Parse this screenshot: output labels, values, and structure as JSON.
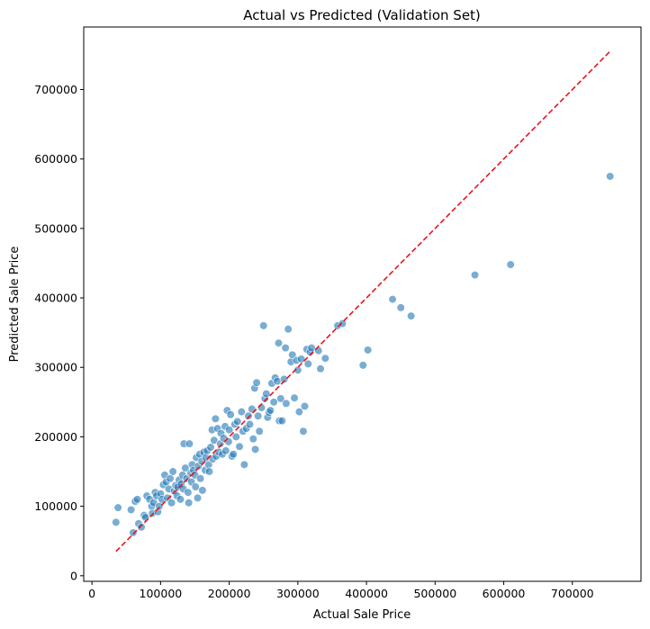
{
  "chart_data": {
    "type": "scatter",
    "title": "Actual vs Predicted (Validation Set)",
    "xlabel": "Actual Sale Price",
    "ylabel": "Predicted Sale Price",
    "xlim": [
      -12000,
      800000
    ],
    "ylim": [
      -8000,
      790000
    ],
    "xticks": [
      0,
      100000,
      200000,
      300000,
      400000,
      500000,
      600000,
      700000
    ],
    "yticks": [
      0,
      100000,
      200000,
      300000,
      400000,
      500000,
      600000,
      700000
    ],
    "xtick_labels": [
      "0",
      "100000",
      "200000",
      "300000",
      "400000",
      "500000",
      "600000",
      "700000"
    ],
    "ytick_labels": [
      "0",
      "100000",
      "200000",
      "300000",
      "400000",
      "500000",
      "600000",
      "700000"
    ],
    "grid": false,
    "point_color": "#1f77b4",
    "point_opacity": 0.6,
    "reference_line": {
      "x": [
        35000,
        755000
      ],
      "y": [
        35000,
        755000
      ],
      "color": "#e8141a",
      "style": "dashed"
    },
    "points": [
      [
        35000,
        77000
      ],
      [
        38000,
        98000
      ],
      [
        57000,
        95000
      ],
      [
        60000,
        62000
      ],
      [
        63000,
        107000
      ],
      [
        66000,
        110000
      ],
      [
        68000,
        75000
      ],
      [
        72000,
        70000
      ],
      [
        76000,
        87000
      ],
      [
        78000,
        84000
      ],
      [
        80000,
        115000
      ],
      [
        84000,
        110000
      ],
      [
        87000,
        100000
      ],
      [
        88000,
        90000
      ],
      [
        90000,
        105000
      ],
      [
        92000,
        120000
      ],
      [
        94000,
        115000
      ],
      [
        96000,
        92000
      ],
      [
        98000,
        100000
      ],
      [
        100000,
        118000
      ],
      [
        102000,
        110000
      ],
      [
        104000,
        131000
      ],
      [
        106000,
        145000
      ],
      [
        108000,
        135000
      ],
      [
        110000,
        112000
      ],
      [
        112000,
        125000
      ],
      [
        114000,
        140000
      ],
      [
        116000,
        105000
      ],
      [
        118000,
        150000
      ],
      [
        120000,
        122000
      ],
      [
        122000,
        130000
      ],
      [
        124000,
        115000
      ],
      [
        125000,
        128000
      ],
      [
        127000,
        138000
      ],
      [
        129000,
        110000
      ],
      [
        130000,
        132000
      ],
      [
        132000,
        145000
      ],
      [
        133000,
        125000
      ],
      [
        134000,
        190000
      ],
      [
        136000,
        155000
      ],
      [
        138000,
        140000
      ],
      [
        140000,
        120000
      ],
      [
        141000,
        105000
      ],
      [
        142000,
        190000
      ],
      [
        144000,
        148000
      ],
      [
        145000,
        135000
      ],
      [
        146000,
        160000
      ],
      [
        148000,
        152000
      ],
      [
        150000,
        145000
      ],
      [
        151000,
        128000
      ],
      [
        152000,
        170000
      ],
      [
        154000,
        112000
      ],
      [
        155000,
        158000
      ],
      [
        157000,
        175000
      ],
      [
        158000,
        140000
      ],
      [
        160000,
        165000
      ],
      [
        161000,
        123000
      ],
      [
        163000,
        178000
      ],
      [
        165000,
        152000
      ],
      [
        166000,
        170000
      ],
      [
        168000,
        180000
      ],
      [
        170000,
        160000
      ],
      [
        171000,
        150000
      ],
      [
        173000,
        185000
      ],
      [
        175000,
        210000
      ],
      [
        176000,
        168000
      ],
      [
        178000,
        195000
      ],
      [
        180000,
        226000
      ],
      [
        181000,
        172000
      ],
      [
        183000,
        212000
      ],
      [
        185000,
        178000
      ],
      [
        187000,
        190000
      ],
      [
        188000,
        205000
      ],
      [
        190000,
        175000
      ],
      [
        192000,
        198000
      ],
      [
        194000,
        215000
      ],
      [
        195000,
        180000
      ],
      [
        197000,
        238000
      ],
      [
        199000,
        193000
      ],
      [
        200000,
        210000
      ],
      [
        202000,
        232000
      ],
      [
        204000,
        172000
      ],
      [
        206000,
        175000
      ],
      [
        208000,
        218000
      ],
      [
        210000,
        200000
      ],
      [
        212000,
        222000
      ],
      [
        215000,
        186000
      ],
      [
        218000,
        236000
      ],
      [
        220000,
        208000
      ],
      [
        222000,
        160000
      ],
      [
        225000,
        212000
      ],
      [
        228000,
        230000
      ],
      [
        230000,
        218000
      ],
      [
        233000,
        240000
      ],
      [
        235000,
        197000
      ],
      [
        237000,
        270000
      ],
      [
        238000,
        182000
      ],
      [
        240000,
        278000
      ],
      [
        242000,
        230000
      ],
      [
        244000,
        208000
      ],
      [
        247000,
        242000
      ],
      [
        250000,
        360000
      ],
      [
        252000,
        255000
      ],
      [
        254000,
        262000
      ],
      [
        256000,
        228000
      ],
      [
        258000,
        235000
      ],
      [
        260000,
        238000
      ],
      [
        262000,
        277000
      ],
      [
        265000,
        250000
      ],
      [
        267000,
        285000
      ],
      [
        270000,
        280000
      ],
      [
        272000,
        335000
      ],
      [
        273000,
        223000
      ],
      [
        275000,
        255000
      ],
      [
        277000,
        223000
      ],
      [
        280000,
        283000
      ],
      [
        282000,
        328000
      ],
      [
        283000,
        248000
      ],
      [
        286000,
        355000
      ],
      [
        290000,
        308000
      ],
      [
        292000,
        318000
      ],
      [
        295000,
        256000
      ],
      [
        298000,
        310000
      ],
      [
        300000,
        296000
      ],
      [
        302000,
        236000
      ],
      [
        305000,
        312000
      ],
      [
        308000,
        208000
      ],
      [
        310000,
        244000
      ],
      [
        313000,
        326000
      ],
      [
        315000,
        305000
      ],
      [
        318000,
        322000
      ],
      [
        320000,
        328000
      ],
      [
        330000,
        324000
      ],
      [
        333000,
        298000
      ],
      [
        340000,
        313000
      ],
      [
        358000,
        360000
      ],
      [
        365000,
        363000
      ],
      [
        395000,
        303000
      ],
      [
        402000,
        325000
      ],
      [
        438000,
        398000
      ],
      [
        450000,
        386000
      ],
      [
        465000,
        374000
      ],
      [
        558000,
        433000
      ],
      [
        610000,
        448000
      ],
      [
        755000,
        575000
      ]
    ]
  }
}
